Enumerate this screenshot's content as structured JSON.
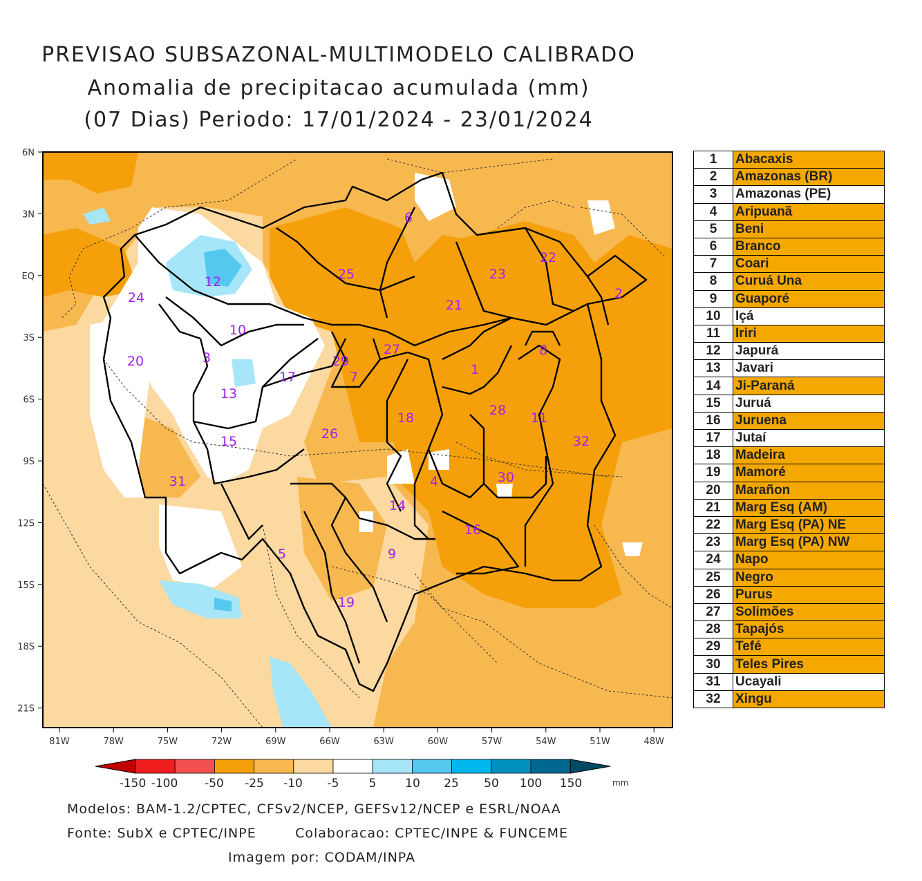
{
  "title": {
    "line1": "PREVISAO SUBSAZONAL-MULTIMODELO CALIBRADO",
    "line2": "Anomalia de precipitacao acumulada (mm)",
    "line3": "(07 Dias) Periodo: 17/01/2024 - 23/01/2024"
  },
  "axes": {
    "lat_ticks": [
      "6N",
      "3N",
      "EQ",
      "3S",
      "6S",
      "9S",
      "12S",
      "15S",
      "18S",
      "21S"
    ],
    "lon_ticks": [
      "81W",
      "78W",
      "75W",
      "72W",
      "69W",
      "66W",
      "63W",
      "60W",
      "57W",
      "54W",
      "51W",
      "48W"
    ]
  },
  "colorbar": {
    "labels": [
      "-150",
      "-100",
      "-50",
      "-25",
      "-10",
      "-5",
      "5",
      "10",
      "25",
      "50",
      "100",
      "150"
    ],
    "unit": "mm",
    "colors": [
      "#c00000",
      "#ee1c1c",
      "#f05050",
      "#f5a00a",
      "#f8b850",
      "#fbd9a0",
      "#ffffff",
      "#a6e6f8",
      "#55c8f0",
      "#00b8ee",
      "#0090c0",
      "#006890",
      "#004a66"
    ]
  },
  "basins": [
    {
      "num": "1",
      "name": "Abacaxis",
      "highlight": true
    },
    {
      "num": "2",
      "name": "Amazonas (BR)",
      "highlight": true
    },
    {
      "num": "3",
      "name": "Amazonas (PE)",
      "highlight": false
    },
    {
      "num": "4",
      "name": "Aripuanã",
      "highlight": true
    },
    {
      "num": "5",
      "name": "Beni",
      "highlight": true
    },
    {
      "num": "6",
      "name": "Branco",
      "highlight": true
    },
    {
      "num": "7",
      "name": "Coari",
      "highlight": true
    },
    {
      "num": "8",
      "name": "Curuá Una",
      "highlight": true
    },
    {
      "num": "9",
      "name": "Guaporé",
      "highlight": true
    },
    {
      "num": "10",
      "name": "Içá",
      "highlight": false
    },
    {
      "num": "11",
      "name": "Iriri",
      "highlight": true
    },
    {
      "num": "12",
      "name": "Japurá",
      "highlight": false
    },
    {
      "num": "13",
      "name": "Javari",
      "highlight": false
    },
    {
      "num": "14",
      "name": "Ji-Paraná",
      "highlight": true
    },
    {
      "num": "15",
      "name": "Juruá",
      "highlight": false
    },
    {
      "num": "16",
      "name": "Juruena",
      "highlight": true
    },
    {
      "num": "17",
      "name": "Jutaí",
      "highlight": false
    },
    {
      "num": "18",
      "name": "Madeira",
      "highlight": true
    },
    {
      "num": "19",
      "name": "Mamoré",
      "highlight": true
    },
    {
      "num": "20",
      "name": "Marañon",
      "highlight": true
    },
    {
      "num": "21",
      "name": "Marg Esq (AM)",
      "highlight": true
    },
    {
      "num": "22",
      "name": "Marg Esq (PA) NE",
      "highlight": true
    },
    {
      "num": "23",
      "name": "Marg Esq (PA) NW",
      "highlight": true
    },
    {
      "num": "24",
      "name": "Napo",
      "highlight": true
    },
    {
      "num": "25",
      "name": "Negro",
      "highlight": true
    },
    {
      "num": "26",
      "name": "Purus",
      "highlight": true
    },
    {
      "num": "27",
      "name": "Solimões",
      "highlight": true
    },
    {
      "num": "28",
      "name": "Tapajós",
      "highlight": true
    },
    {
      "num": "29",
      "name": "Tefé",
      "highlight": true
    },
    {
      "num": "30",
      "name": "Teles Pires",
      "highlight": true
    },
    {
      "num": "31",
      "name": "Ucayali",
      "highlight": false
    },
    {
      "num": "32",
      "name": "Xingu",
      "highlight": true
    }
  ],
  "highlight_color": "#f5a800",
  "basin_label_color": "#a020f0",
  "footer": {
    "line1": "Modelos: BAM-1.2/CPTEC, CFSv2/NCEP, GEFSv12/NCEP e ESRL/NOAA",
    "line2a": "Fonte: SubX e CPTEC/INPE",
    "line2b": "Colaboracao: CPTEC/INPE & FUNCEME",
    "line3": "Imagem por: CODAM/INPA"
  }
}
